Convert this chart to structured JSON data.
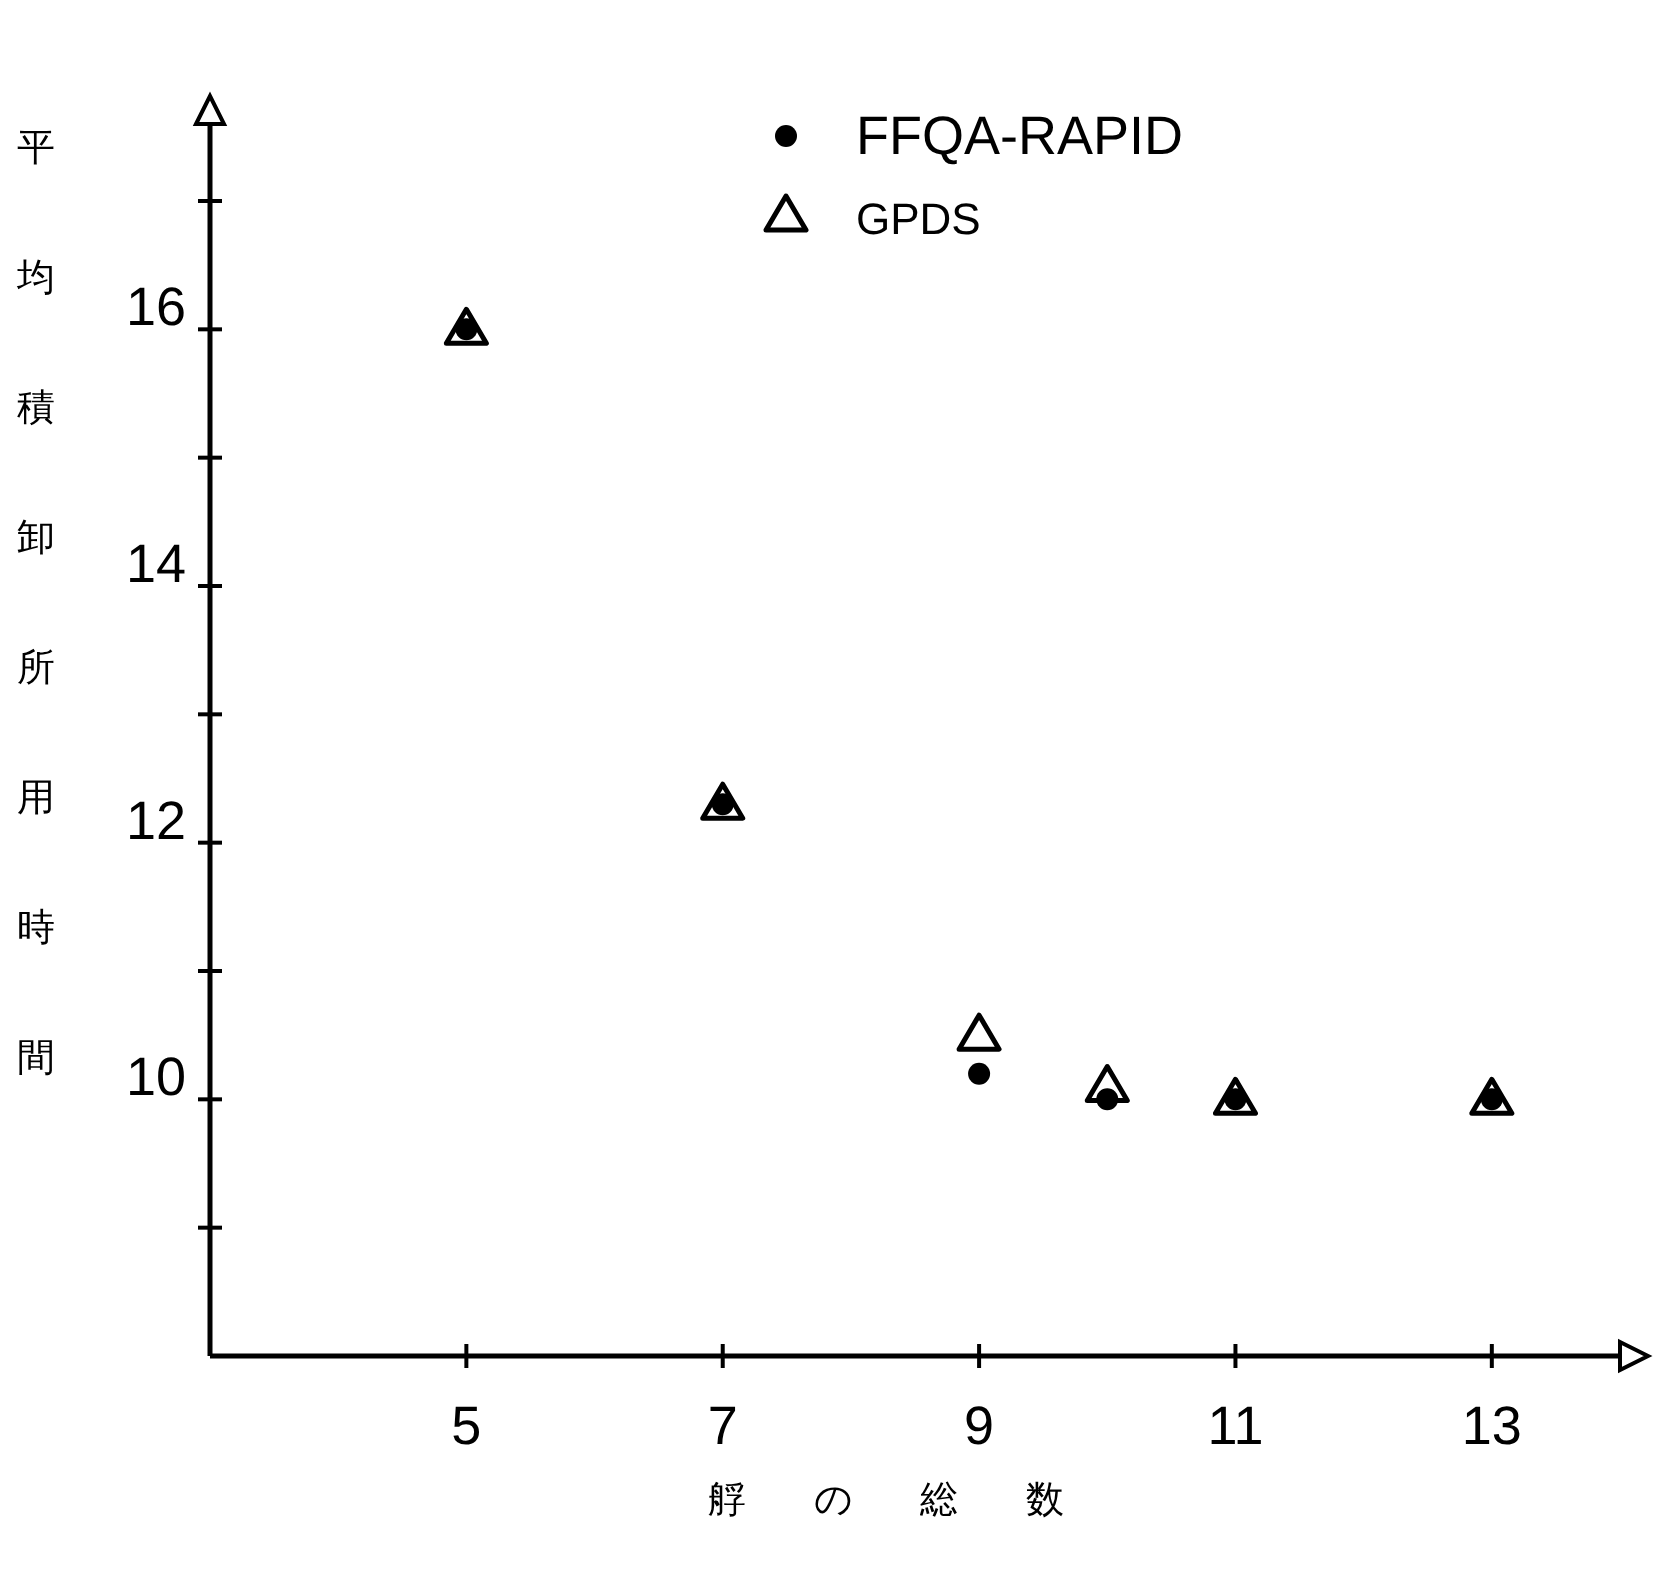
{
  "chart_data": {
    "type": "scatter",
    "xlabel": "艀の総数",
    "ylabel": "平均積卸所用時間",
    "series": [
      {
        "name": "FFQA-RAPID",
        "marker": "circle",
        "color": "#000000",
        "x": [
          5,
          7,
          9,
          10,
          11,
          13
        ],
        "values": [
          16.0,
          12.3,
          10.2,
          10.0,
          10.0,
          10.0
        ]
      },
      {
        "name": "GPDS",
        "marker": "triangle",
        "color": "#000000",
        "x": [
          5,
          7,
          9,
          10,
          11,
          13
        ],
        "values": [
          16.0,
          12.3,
          10.5,
          10.1,
          10.0,
          10.0
        ]
      }
    ],
    "xlim": [
      3,
      14
    ],
    "ylim": [
      8,
      17.6
    ],
    "xticks": [
      5,
      7,
      9,
      11,
      13
    ],
    "yticks": [
      {
        "value": 9,
        "label": null
      },
      10,
      {
        "value": 11,
        "label": null
      },
      12,
      {
        "value": 13,
        "label": null
      },
      14,
      {
        "value": 15,
        "label": null
      },
      16,
      {
        "value": 17,
        "label": null
      }
    ],
    "grid": false,
    "legend": "top"
  }
}
